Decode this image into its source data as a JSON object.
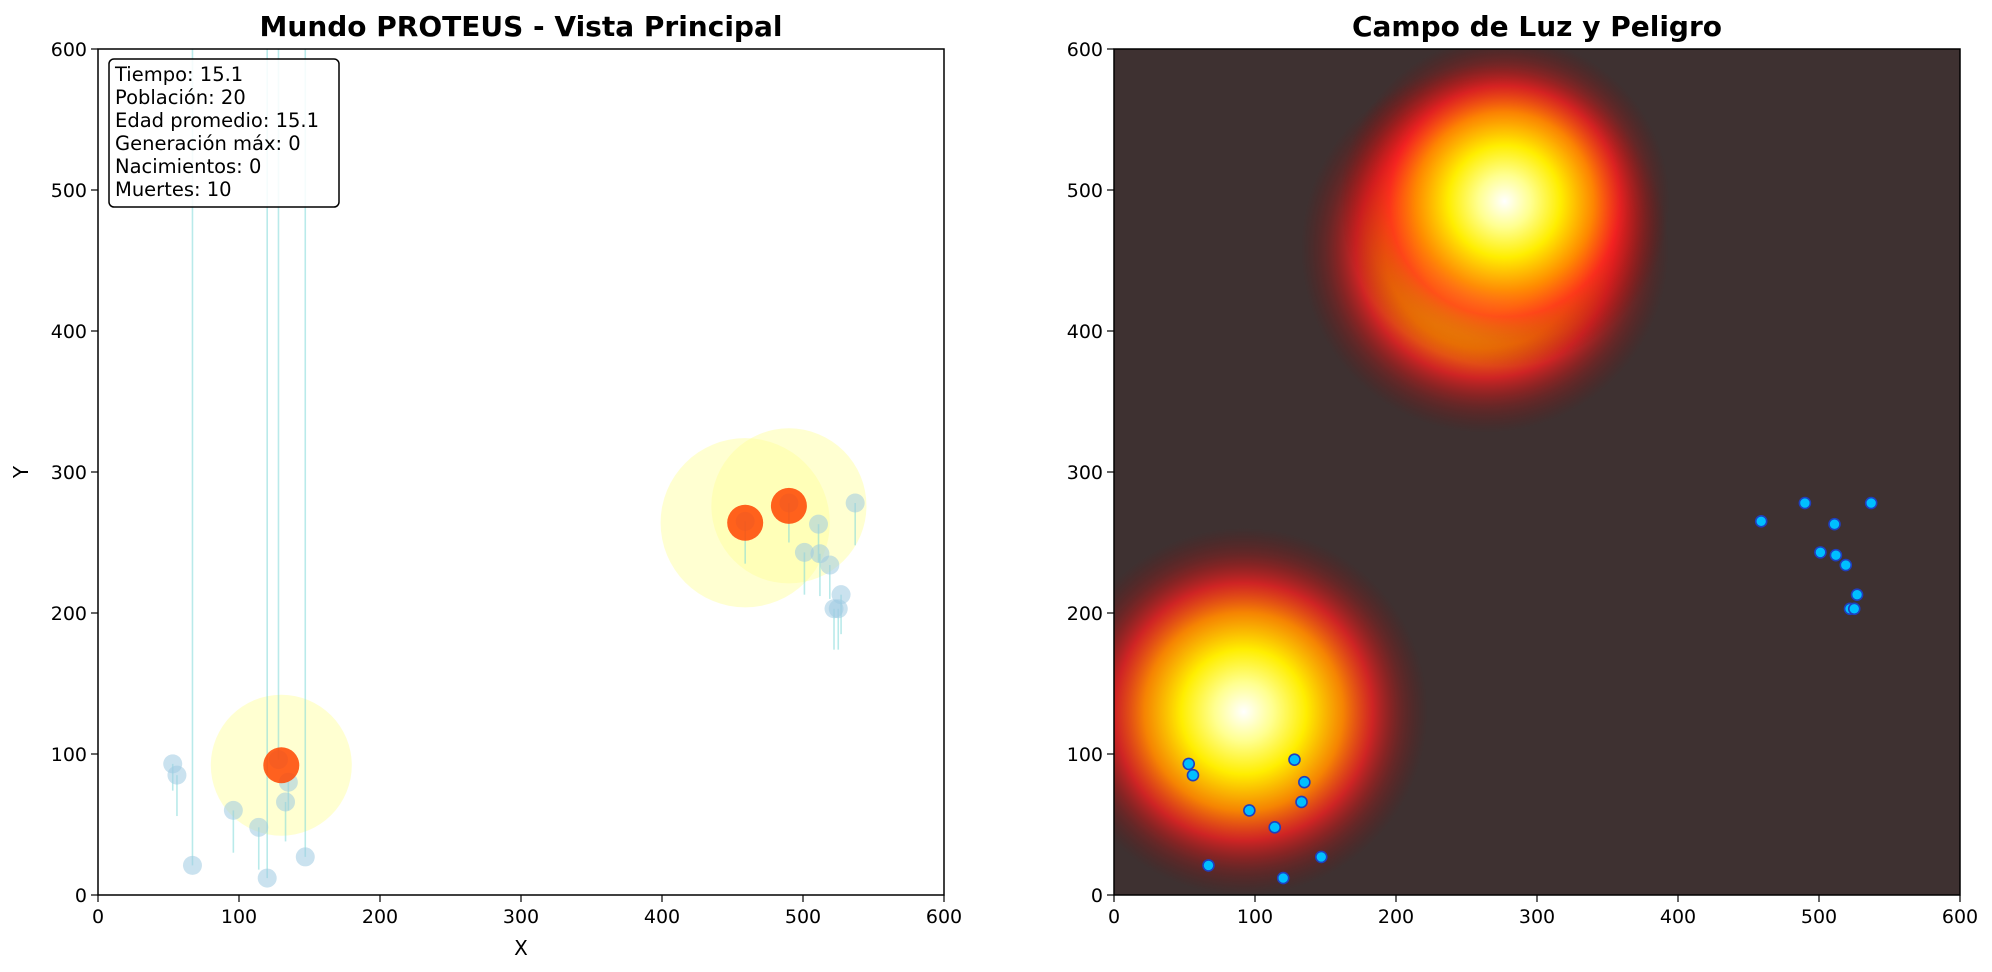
{
  "chart_data": [
    {
      "type": "scatter",
      "title": "Mundo PROTEUS - Vista Principal",
      "xlabel": "X",
      "ylabel": "Y",
      "xlim": [
        0,
        600
      ],
      "ylim": [
        0,
        600
      ],
      "xticks": [
        0,
        100,
        200,
        300,
        400,
        500,
        600
      ],
      "yticks": [
        0,
        100,
        200,
        300,
        400,
        500,
        600
      ],
      "grid": false,
      "stats_box": {
        "position": "top-left",
        "lines": [
          "Tiempo: 15.1",
          "Población: 20",
          "Edad promedio: 15.1",
          "Generación máx: 0",
          "Nacimientos: 0",
          "Muertes: 10"
        ]
      },
      "light_sources": [
        {
          "x": 130,
          "y": 92,
          "radius": 50
        },
        {
          "x": 459,
          "y": 264,
          "radius": 60
        },
        {
          "x": 490,
          "y": 276,
          "radius": 55
        }
      ],
      "organisms": [
        {
          "x": 53,
          "y": 93,
          "trail_y": 74
        },
        {
          "x": 56,
          "y": 85,
          "trail_y": 56
        },
        {
          "x": 67,
          "y": 21,
          "trail_y": 640
        },
        {
          "x": 96,
          "y": 60,
          "trail_y": 30
        },
        {
          "x": 114,
          "y": 48,
          "trail_y": 18
        },
        {
          "x": 120,
          "y": 12,
          "trail_y": 640
        },
        {
          "x": 133,
          "y": 66,
          "trail_y": 38
        },
        {
          "x": 135,
          "y": 80,
          "trail_y": 60
        },
        {
          "x": 147,
          "y": 27,
          "trail_y": 640
        },
        {
          "x": 128,
          "y": 96,
          "trail_y": 640
        },
        {
          "x": 501,
          "y": 243,
          "trail_y": 213
        },
        {
          "x": 511,
          "y": 263,
          "trail_y": 236
        },
        {
          "x": 512,
          "y": 242,
          "trail_y": 212
        },
        {
          "x": 519,
          "y": 234,
          "trail_y": 210
        },
        {
          "x": 522,
          "y": 203,
          "trail_y": 174
        },
        {
          "x": 525,
          "y": 203,
          "trail_y": 174
        },
        {
          "x": 527,
          "y": 213,
          "trail_y": 185
        },
        {
          "x": 537,
          "y": 278,
          "trail_y": 248
        },
        {
          "x": 459,
          "y": 265,
          "trail_y": 235
        },
        {
          "x": 490,
          "y": 278,
          "trail_y": 250
        }
      ],
      "colors": {
        "organism": "#9ecae1",
        "trail": "#7fd8d8",
        "light_halo": "#ffff99",
        "light_core": "#ff4500"
      }
    },
    {
      "type": "heatmap",
      "title": "Campo de Luz y Peligro",
      "xlim": [
        0,
        600
      ],
      "ylim": [
        0,
        600
      ],
      "xticks": [
        0,
        100,
        200,
        300,
        400,
        500,
        600
      ],
      "yticks": [
        0,
        100,
        200,
        300,
        400,
        500,
        600
      ],
      "grid": false,
      "hotspots": [
        {
          "x": 92,
          "y": 130,
          "sigma": 58
        },
        {
          "x": 263,
          "y": 458,
          "sigma": 58
        },
        {
          "x": 277,
          "y": 492,
          "sigma": 52
        }
      ],
      "points": [
        {
          "x": 53,
          "y": 93
        },
        {
          "x": 56,
          "y": 85
        },
        {
          "x": 67,
          "y": 21
        },
        {
          "x": 96,
          "y": 60
        },
        {
          "x": 114,
          "y": 48
        },
        {
          "x": 120,
          "y": 12
        },
        {
          "x": 128,
          "y": 96
        },
        {
          "x": 133,
          "y": 66
        },
        {
          "x": 135,
          "y": 80
        },
        {
          "x": 147,
          "y": 27
        },
        {
          "x": 459,
          "y": 265
        },
        {
          "x": 490,
          "y": 278
        },
        {
          "x": 501,
          "y": 243
        },
        {
          "x": 511,
          "y": 263
        },
        {
          "x": 512,
          "y": 241
        },
        {
          "x": 519,
          "y": 234
        },
        {
          "x": 522,
          "y": 203
        },
        {
          "x": 525,
          "y": 203
        },
        {
          "x": 527,
          "y": 213
        },
        {
          "x": 537,
          "y": 278
        }
      ],
      "colors": {
        "background": "#3e3131",
        "point_fill": "#00bfff",
        "point_edge": "#1f3fbf"
      }
    }
  ]
}
